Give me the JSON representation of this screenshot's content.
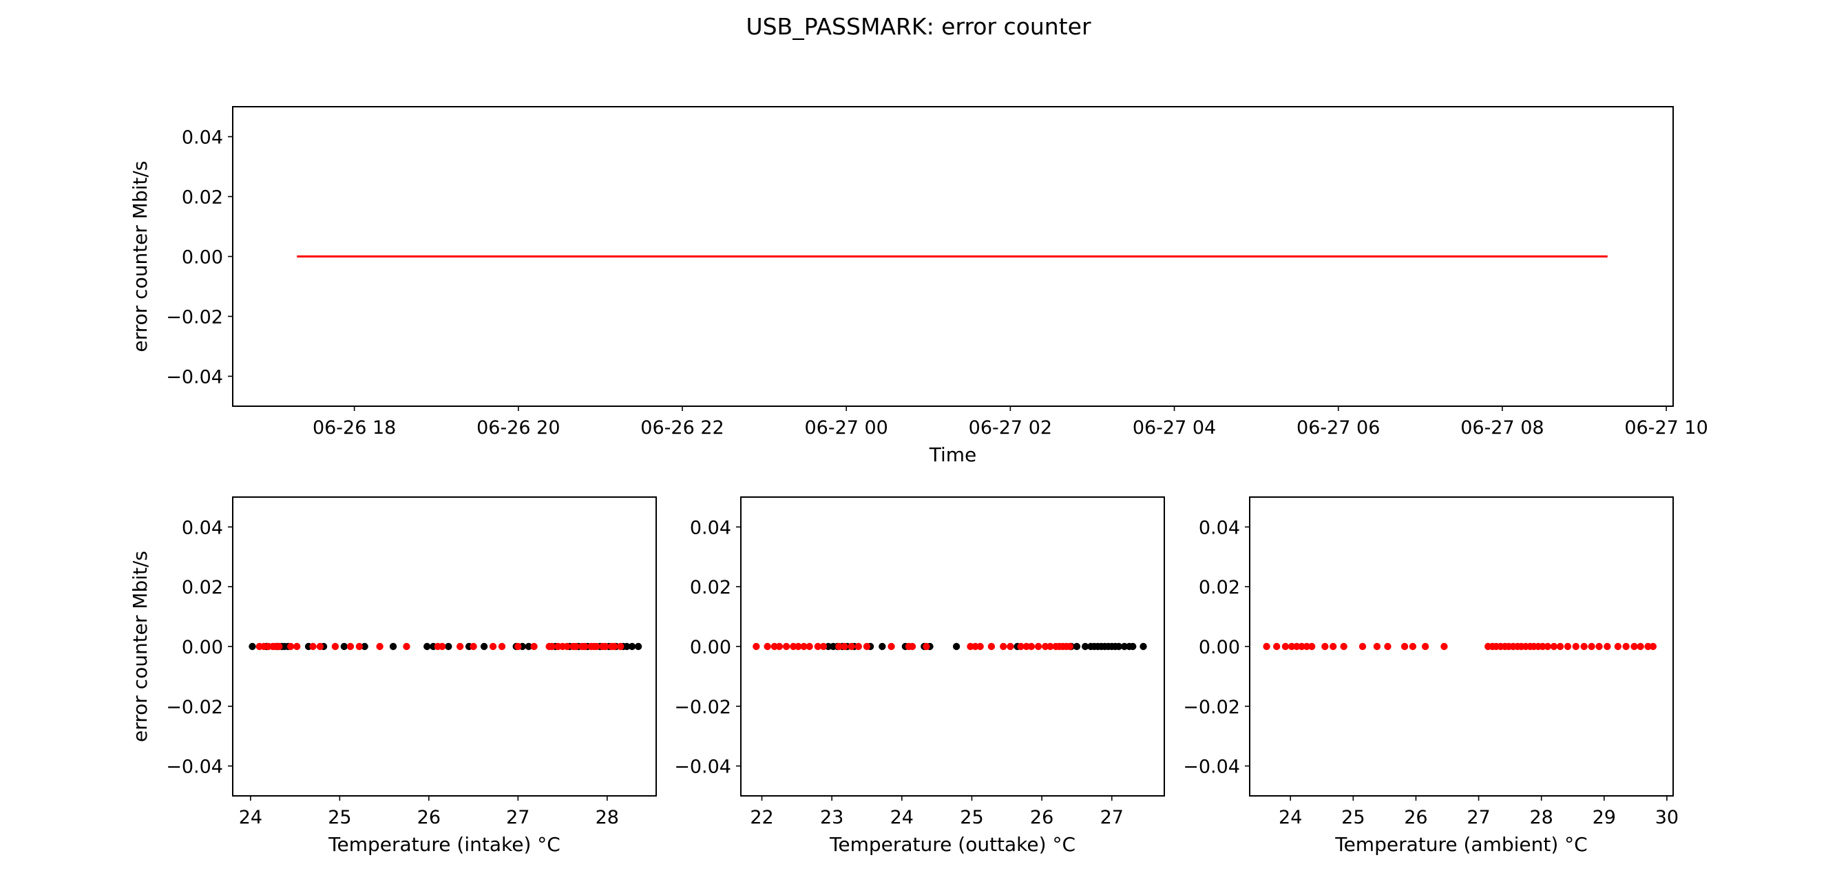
{
  "figure": {
    "title": "USB_PASSMARK: error counter"
  },
  "colors": {
    "series": "#ff0000",
    "secondary": "#000000",
    "axes": "#000000",
    "background": "#ffffff"
  },
  "chart_data": [
    {
      "id": "time",
      "type": "line",
      "xlabel": "Time",
      "ylabel": "error counter Mbit/s",
      "xaxis": "datetime",
      "xlim": [
        "2018-06-26 16:31",
        "2018-06-27 10:05"
      ],
      "ylim": [
        -0.05,
        0.05
      ],
      "xticks": [
        "2018-06-26 18:00",
        "2018-06-26 20:00",
        "2018-06-26 22:00",
        "2018-06-27 00:00",
        "2018-06-27 02:00",
        "2018-06-27 04:00",
        "2018-06-27 06:00",
        "2018-06-27 08:00",
        "2018-06-27 10:00"
      ],
      "xticklabels": [
        "06-26 18",
        "06-26 20",
        "06-26 22",
        "06-27 00",
        "06-27 02",
        "06-27 04",
        "06-27 06",
        "06-27 08",
        "06-27 10"
      ],
      "yticks": [
        -0.04,
        -0.02,
        0.0,
        0.02,
        0.04
      ],
      "yticklabels": [
        "−0.04",
        "−0.02",
        "0.00",
        "0.02",
        "0.04"
      ],
      "series": [
        {
          "color": "#ff0000",
          "x": [
            "2018-06-26 17:18",
            "2018-06-27 09:17"
          ],
          "y": [
            0,
            0
          ]
        }
      ]
    },
    {
      "id": "intake",
      "type": "scatter",
      "xlabel": "Temperature (intake) °C",
      "ylabel": "error counter Mbit/s",
      "xlim": [
        23.8,
        28.55
      ],
      "ylim": [
        -0.05,
        0.05
      ],
      "xticks": [
        24,
        25,
        26,
        27,
        28
      ],
      "xticklabels": [
        "24",
        "25",
        "26",
        "27",
        "28"
      ],
      "yticks": [
        -0.04,
        -0.02,
        0.0,
        0.02,
        0.04
      ],
      "yticklabels": [
        "−0.04",
        "−0.02",
        "0.00",
        "0.02",
        "0.04"
      ],
      "series": [
        {
          "color": "#000000",
          "x": [
            24.02,
            24.18,
            24.3,
            24.35,
            24.38,
            24.42,
            24.65,
            24.82,
            25.05,
            25.28,
            25.6,
            25.98,
            26.05,
            26.22,
            26.45,
            26.62,
            26.98,
            27.05,
            27.12,
            27.42,
            27.58,
            27.68,
            27.78,
            27.92,
            28.02,
            28.1,
            28.18,
            28.22,
            28.28,
            28.35
          ],
          "y": [
            0,
            0,
            0,
            0,
            0,
            0,
            0,
            0,
            0,
            0,
            0,
            0,
            0,
            0,
            0,
            0,
            0,
            0,
            0,
            0,
            0,
            0,
            0,
            0,
            0,
            0,
            0,
            0,
            0,
            0
          ]
        },
        {
          "color": "#ff0000",
          "x": [
            24.1,
            24.15,
            24.2,
            24.25,
            24.28,
            24.32,
            24.45,
            24.52,
            24.7,
            24.78,
            24.95,
            25.12,
            25.22,
            25.45,
            25.75,
            26.1,
            26.15,
            26.35,
            26.5,
            26.72,
            26.82,
            27.0,
            27.18,
            27.35,
            27.38,
            27.45,
            27.5,
            27.55,
            27.62,
            27.65,
            27.72,
            27.75,
            27.82,
            27.85,
            27.88,
            27.95,
            27.98,
            28.05,
            28.08,
            28.15
          ],
          "y": [
            0,
            0,
            0,
            0,
            0,
            0,
            0,
            0,
            0,
            0,
            0,
            0,
            0,
            0,
            0,
            0,
            0,
            0,
            0,
            0,
            0,
            0,
            0,
            0,
            0,
            0,
            0,
            0,
            0,
            0,
            0,
            0,
            0,
            0,
            0,
            0,
            0,
            0,
            0,
            0
          ]
        }
      ]
    },
    {
      "id": "outtake",
      "type": "scatter",
      "xlabel": "Temperature (outtake) °C",
      "ylabel": "",
      "xlim": [
        21.7,
        27.75
      ],
      "ylim": [
        -0.05,
        0.05
      ],
      "xticks": [
        22,
        23,
        24,
        25,
        26,
        27
      ],
      "xticklabels": [
        "22",
        "23",
        "24",
        "25",
        "26",
        "27"
      ],
      "yticks": [
        -0.04,
        -0.02,
        0.0,
        0.02,
        0.04
      ],
      "yticklabels": [
        "−0.04",
        "−0.02",
        "0.00",
        "0.02",
        "0.04"
      ],
      "series": [
        {
          "color": "#000000",
          "x": [
            22.95,
            23.02,
            23.08,
            23.15,
            23.22,
            23.32,
            23.55,
            23.72,
            24.05,
            24.32,
            24.4,
            24.78,
            25.65,
            26.42,
            26.5,
            26.62,
            26.7,
            26.75,
            26.8,
            26.85,
            26.9,
            26.95,
            27.0,
            27.05,
            27.1,
            27.18,
            27.25,
            27.3,
            27.45
          ],
          "y": [
            0,
            0,
            0,
            0,
            0,
            0,
            0,
            0,
            0,
            0,
            0,
            0,
            0,
            0,
            0,
            0,
            0,
            0,
            0,
            0,
            0,
            0,
            0,
            0,
            0,
            0,
            0,
            0,
            0
          ]
        },
        {
          "color": "#ff0000",
          "x": [
            21.92,
            22.08,
            22.18,
            22.25,
            22.35,
            22.45,
            22.52,
            22.6,
            22.68,
            22.8,
            22.88,
            23.1,
            23.18,
            23.28,
            23.38,
            23.5,
            23.85,
            24.1,
            24.15,
            24.35,
            24.98,
            25.05,
            25.12,
            25.28,
            25.45,
            25.55,
            25.7,
            25.78,
            25.85,
            25.95,
            26.05,
            26.12,
            26.2,
            26.25,
            26.3,
            26.35,
            26.4
          ],
          "y": [
            0,
            0,
            0,
            0,
            0,
            0,
            0,
            0,
            0,
            0,
            0,
            0,
            0,
            0,
            0,
            0,
            0,
            0,
            0,
            0,
            0,
            0,
            0,
            0,
            0,
            0,
            0,
            0,
            0,
            0,
            0,
            0,
            0,
            0,
            0,
            0,
            0
          ]
        }
      ]
    },
    {
      "id": "ambient",
      "type": "scatter",
      "xlabel": "Temperature (ambient) °C",
      "ylabel": "",
      "xlim": [
        23.35,
        30.1
      ],
      "ylim": [
        -0.05,
        0.05
      ],
      "xticks": [
        24,
        25,
        26,
        27,
        28,
        29,
        30
      ],
      "xticklabels": [
        "24",
        "25",
        "26",
        "27",
        "28",
        "29",
        "30"
      ],
      "yticks": [
        -0.04,
        -0.02,
        0.0,
        0.02,
        0.04
      ],
      "yticklabels": [
        "−0.04",
        "−0.02",
        "0.00",
        "0.02",
        "0.04"
      ],
      "series": [
        {
          "color": "#ff0000",
          "x": [
            23.62,
            23.78,
            23.92,
            24.02,
            24.1,
            24.18,
            24.26,
            24.34,
            24.55,
            24.68,
            24.85,
            25.15,
            25.38,
            25.55,
            25.82,
            25.95,
            26.15,
            26.45,
            27.15,
            27.22,
            27.28,
            27.35,
            27.42,
            27.48,
            27.55,
            27.62,
            27.68,
            27.75,
            27.82,
            27.88,
            27.95,
            28.02,
            28.1,
            28.2,
            28.3,
            28.42,
            28.55,
            28.68,
            28.8,
            28.92,
            29.05,
            29.22,
            29.35,
            29.48,
            29.58,
            29.7,
            29.78
          ],
          "y": [
            0,
            0,
            0,
            0,
            0,
            0,
            0,
            0,
            0,
            0,
            0,
            0,
            0,
            0,
            0,
            0,
            0,
            0,
            0,
            0,
            0,
            0,
            0,
            0,
            0,
            0,
            0,
            0,
            0,
            0,
            0,
            0,
            0,
            0,
            0,
            0,
            0,
            0,
            0,
            0,
            0,
            0,
            0,
            0,
            0,
            0,
            0
          ]
        }
      ]
    }
  ]
}
